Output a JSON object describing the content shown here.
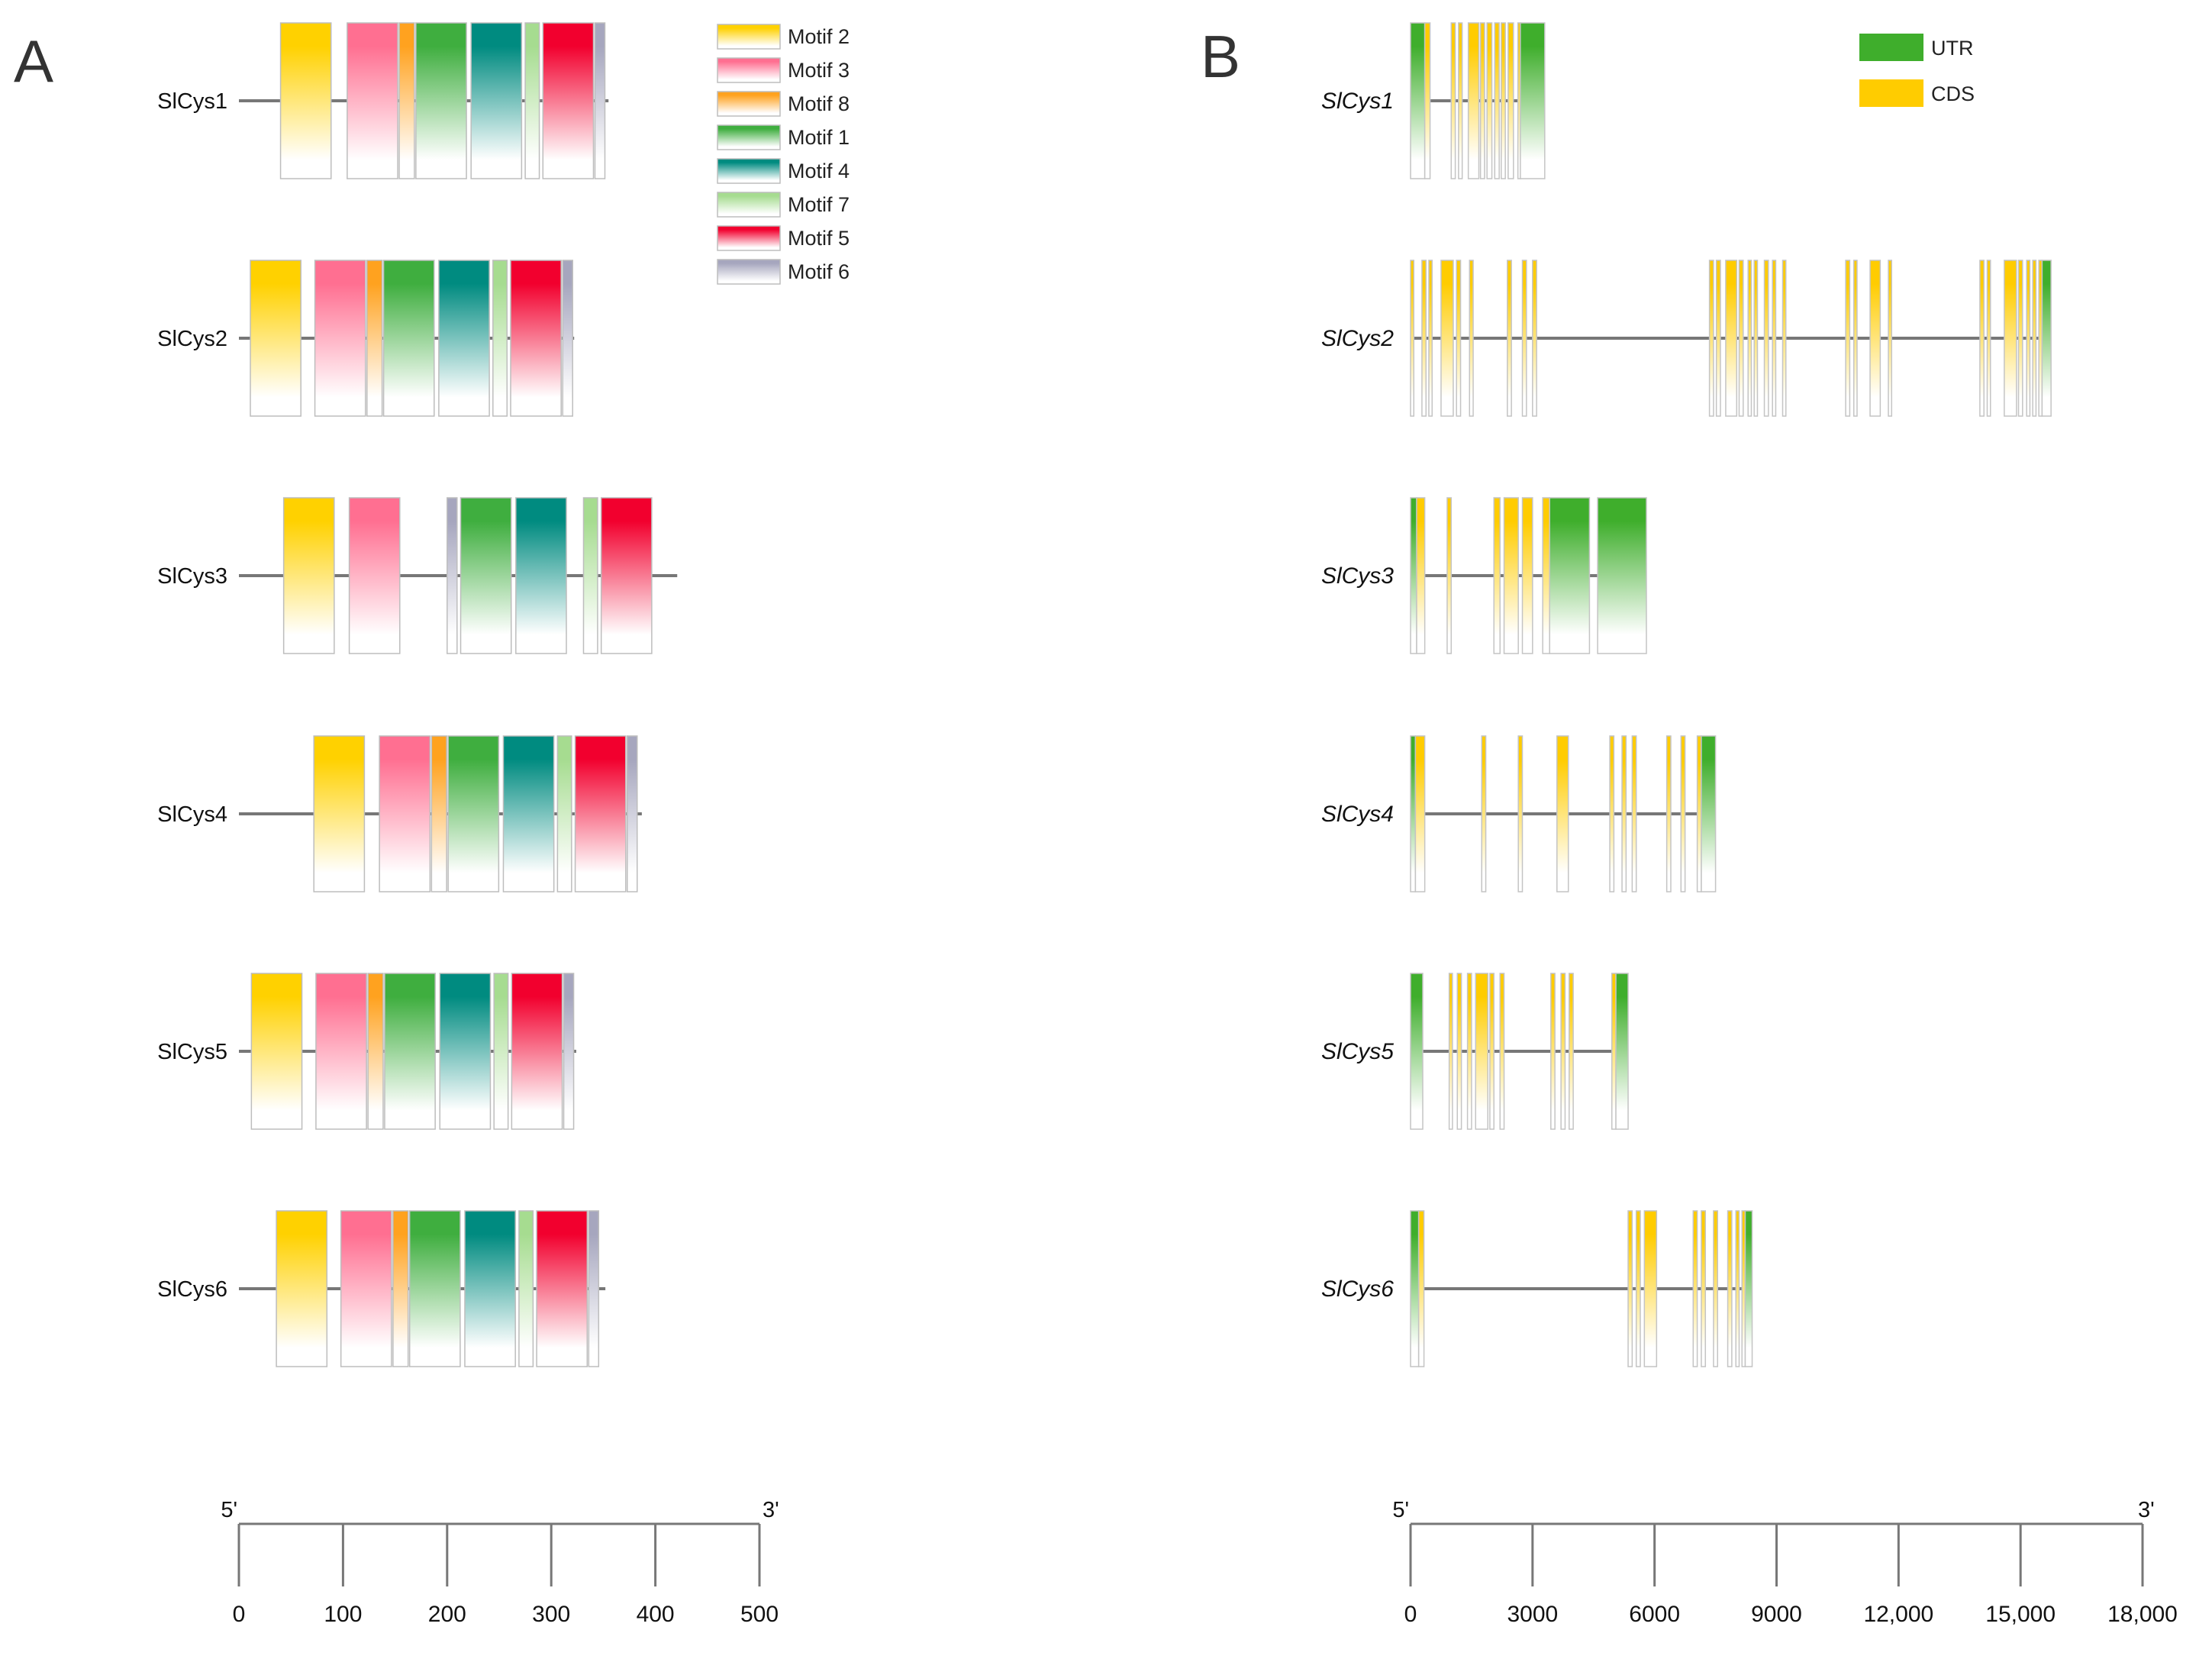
{
  "panels": {
    "a": {
      "label": "A"
    },
    "b": {
      "label": "B"
    }
  },
  "motif_legend": [
    {
      "name": "Motif 2",
      "color": "#FFD100"
    },
    {
      "name": "Motif 3",
      "color": "#FF6F91"
    },
    {
      "name": "Motif 8",
      "color": "#FFA21F"
    },
    {
      "name": "Motif 1",
      "color": "#3FAE3F"
    },
    {
      "name": "Motif 4",
      "color": "#008B80"
    },
    {
      "name": "Motif 7",
      "color": "#A6DC90"
    },
    {
      "name": "Motif 5",
      "color": "#F2002E"
    },
    {
      "name": "Motif 6",
      "color": "#A6A6BE"
    }
  ],
  "gene_legend": [
    {
      "name": "UTR",
      "color": "#3FAE2C"
    },
    {
      "name": "CDS",
      "color": "#FFCC00"
    }
  ],
  "chart_data": [
    {
      "type": "motif-structure",
      "panel": "A",
      "xlabel": "",
      "xlim": [
        0,
        500
      ],
      "ticks": [
        "0",
        "100",
        "200",
        "300",
        "400",
        "500"
      ],
      "tick_values": [
        0,
        100,
        200,
        300,
        400,
        500
      ],
      "end_labels": {
        "left": "5'",
        "right": "3'"
      },
      "proteins": [
        {
          "name": "SlCys1",
          "length": 355,
          "motifs": [
            {
              "motif": "Motif 2",
              "start": 40,
              "end": 90
            },
            {
              "motif": "Motif 3",
              "start": 104,
              "end": 154
            },
            {
              "motif": "Motif 8",
              "start": 154,
              "end": 170
            },
            {
              "motif": "Motif 1",
              "start": 170,
              "end": 220
            },
            {
              "motif": "Motif 4",
              "start": 223,
              "end": 273
            },
            {
              "motif": "Motif 7",
              "start": 275,
              "end": 290
            },
            {
              "motif": "Motif 5",
              "start": 292,
              "end": 342
            },
            {
              "motif": "Motif 6",
              "start": 342,
              "end": 353
            }
          ]
        },
        {
          "name": "SlCys2",
          "length": 322,
          "motifs": [
            {
              "motif": "Motif 2",
              "start": 11,
              "end": 61
            },
            {
              "motif": "Motif 3",
              "start": 73,
              "end": 123
            },
            {
              "motif": "Motif 8",
              "start": 123,
              "end": 139
            },
            {
              "motif": "Motif 1",
              "start": 139,
              "end": 189
            },
            {
              "motif": "Motif 4",
              "start": 192,
              "end": 242
            },
            {
              "motif": "Motif 7",
              "start": 244,
              "end": 259
            },
            {
              "motif": "Motif 5",
              "start": 261,
              "end": 311
            },
            {
              "motif": "Motif 6",
              "start": 311,
              "end": 322
            }
          ]
        },
        {
          "name": "SlCys3",
          "length": 421,
          "motifs": [
            {
              "motif": "Motif 2",
              "start": 43,
              "end": 93
            },
            {
              "motif": "Motif 3",
              "start": 106,
              "end": 156
            },
            {
              "motif": "Motif 6",
              "start": 200,
              "end": 211
            },
            {
              "motif": "Motif 1",
              "start": 213,
              "end": 263
            },
            {
              "motif": "Motif 4",
              "start": 266,
              "end": 316
            },
            {
              "motif": "Motif 7",
              "start": 331,
              "end": 346
            },
            {
              "motif": "Motif 5",
              "start": 348,
              "end": 398
            }
          ]
        },
        {
          "name": "SlCys4",
          "length": 387,
          "motifs": [
            {
              "motif": "Motif 2",
              "start": 72,
              "end": 122
            },
            {
              "motif": "Motif 3",
              "start": 135,
              "end": 185
            },
            {
              "motif": "Motif 8",
              "start": 185,
              "end": 201
            },
            {
              "motif": "Motif 1",
              "start": 201,
              "end": 251
            },
            {
              "motif": "Motif 4",
              "start": 254,
              "end": 304
            },
            {
              "motif": "Motif 7",
              "start": 306,
              "end": 321
            },
            {
              "motif": "Motif 5",
              "start": 323,
              "end": 373
            },
            {
              "motif": "Motif 6",
              "start": 373,
              "end": 384
            }
          ]
        },
        {
          "name": "SlCys5",
          "length": 324,
          "motifs": [
            {
              "motif": "Motif 2",
              "start": 12,
              "end": 62
            },
            {
              "motif": "Motif 3",
              "start": 74,
              "end": 124
            },
            {
              "motif": "Motif 8",
              "start": 124,
              "end": 140
            },
            {
              "motif": "Motif 1",
              "start": 140,
              "end": 190
            },
            {
              "motif": "Motif 4",
              "start": 193,
              "end": 243
            },
            {
              "motif": "Motif 7",
              "start": 245,
              "end": 260
            },
            {
              "motif": "Motif 5",
              "start": 262,
              "end": 312
            },
            {
              "motif": "Motif 6",
              "start": 312,
              "end": 323
            }
          ]
        },
        {
          "name": "SlCys6",
          "length": 352,
          "motifs": [
            {
              "motif": "Motif 2",
              "start": 36,
              "end": 86
            },
            {
              "motif": "Motif 3",
              "start": 98,
              "end": 148
            },
            {
              "motif": "Motif 8",
              "start": 148,
              "end": 164
            },
            {
              "motif": "Motif 1",
              "start": 164,
              "end": 214
            },
            {
              "motif": "Motif 4",
              "start": 217,
              "end": 267
            },
            {
              "motif": "Motif 7",
              "start": 269,
              "end": 284
            },
            {
              "motif": "Motif 5",
              "start": 286,
              "end": 336
            },
            {
              "motif": "Motif 6",
              "start": 336,
              "end": 347
            }
          ]
        }
      ]
    },
    {
      "type": "gene-structure",
      "panel": "B",
      "xlabel": "",
      "xlim": [
        0,
        18000
      ],
      "ticks": [
        "0",
        "3000",
        "6000",
        "9000",
        "12,000",
        "15,000",
        "18,000"
      ],
      "tick_values": [
        0,
        3000,
        6000,
        9000,
        12000,
        15000,
        18000
      ],
      "end_labels": {
        "left": "5'",
        "right": "3'"
      },
      "genes": [
        {
          "name": "SlCys1",
          "length": 3300,
          "features": [
            {
              "type": "UTR",
              "start": 0,
              "end": 350
            },
            {
              "type": "CDS",
              "start": 350,
              "end": 480
            },
            {
              "type": "CDS",
              "start": 1000,
              "end": 1100
            },
            {
              "type": "CDS",
              "start": 1180,
              "end": 1270
            },
            {
              "type": "CDS",
              "start": 1420,
              "end": 1680
            },
            {
              "type": "CDS",
              "start": 1720,
              "end": 1820
            },
            {
              "type": "CDS",
              "start": 1880,
              "end": 2000
            },
            {
              "type": "CDS",
              "start": 2070,
              "end": 2180
            },
            {
              "type": "CDS",
              "start": 2230,
              "end": 2330
            },
            {
              "type": "CDS",
              "start": 2400,
              "end": 2530
            },
            {
              "type": "CDS",
              "start": 2640,
              "end": 2700
            },
            {
              "type": "UTR",
              "start": 2700,
              "end": 3300
            }
          ]
        },
        {
          "name": "SlCys2",
          "length": 15750,
          "features": [
            {
              "type": "CDS",
              "start": 0,
              "end": 80
            },
            {
              "type": "CDS",
              "start": 280,
              "end": 380
            },
            {
              "type": "CDS",
              "start": 450,
              "end": 530
            },
            {
              "type": "CDS",
              "start": 750,
              "end": 1050
            },
            {
              "type": "CDS",
              "start": 1130,
              "end": 1230
            },
            {
              "type": "CDS",
              "start": 1450,
              "end": 1540
            },
            {
              "type": "CDS",
              "start": 2380,
              "end": 2480
            },
            {
              "type": "CDS",
              "start": 2750,
              "end": 2850
            },
            {
              "type": "CDS",
              "start": 3000,
              "end": 3100
            },
            {
              "type": "CDS",
              "start": 7350,
              "end": 7450
            },
            {
              "type": "CDS",
              "start": 7520,
              "end": 7620
            },
            {
              "type": "CDS",
              "start": 7750,
              "end": 8020
            },
            {
              "type": "CDS",
              "start": 8080,
              "end": 8180
            },
            {
              "type": "CDS",
              "start": 8300,
              "end": 8380
            },
            {
              "type": "CDS",
              "start": 8450,
              "end": 8530
            },
            {
              "type": "CDS",
              "start": 8700,
              "end": 8800
            },
            {
              "type": "CDS",
              "start": 8900,
              "end": 8980
            },
            {
              "type": "CDS",
              "start": 9150,
              "end": 9230
            },
            {
              "type": "CDS",
              "start": 10700,
              "end": 10800
            },
            {
              "type": "CDS",
              "start": 10900,
              "end": 10980
            },
            {
              "type": "CDS",
              "start": 11300,
              "end": 11550
            },
            {
              "type": "CDS",
              "start": 11750,
              "end": 11830
            },
            {
              "type": "CDS",
              "start": 14000,
              "end": 14100
            },
            {
              "type": "CDS",
              "start": 14180,
              "end": 14260
            },
            {
              "type": "CDS",
              "start": 14600,
              "end": 14900
            },
            {
              "type": "CDS",
              "start": 14950,
              "end": 15050
            },
            {
              "type": "CDS",
              "start": 15150,
              "end": 15230
            },
            {
              "type": "CDS",
              "start": 15300,
              "end": 15380
            },
            {
              "type": "CDS",
              "start": 15450,
              "end": 15530
            },
            {
              "type": "UTR",
              "start": 15530,
              "end": 15750
            }
          ]
        },
        {
          "name": "SlCys3",
          "length": 5800,
          "features": [
            {
              "type": "UTR",
              "start": 0,
              "end": 150
            },
            {
              "type": "CDS",
              "start": 150,
              "end": 350
            },
            {
              "type": "CDS",
              "start": 900,
              "end": 1000
            },
            {
              "type": "CDS",
              "start": 2050,
              "end": 2200
            },
            {
              "type": "CDS",
              "start": 2300,
              "end": 2650
            },
            {
              "type": "CDS",
              "start": 2750,
              "end": 3000
            },
            {
              "type": "CDS",
              "start": 3250,
              "end": 3420
            },
            {
              "type": "UTR",
              "start": 3420,
              "end": 4400
            },
            {
              "type": "UTR",
              "start": 4600,
              "end": 5800
            }
          ]
        },
        {
          "name": "SlCys4",
          "length": 7500,
          "features": [
            {
              "type": "UTR",
              "start": 0,
              "end": 120
            },
            {
              "type": "CDS",
              "start": 120,
              "end": 350
            },
            {
              "type": "CDS",
              "start": 1750,
              "end": 1850
            },
            {
              "type": "CDS",
              "start": 2650,
              "end": 2750
            },
            {
              "type": "CDS",
              "start": 3600,
              "end": 3880
            },
            {
              "type": "CDS",
              "start": 4900,
              "end": 5000
            },
            {
              "type": "CDS",
              "start": 5200,
              "end": 5300
            },
            {
              "type": "CDS",
              "start": 5450,
              "end": 5550
            },
            {
              "type": "CDS",
              "start": 6300,
              "end": 6400
            },
            {
              "type": "CDS",
              "start": 6650,
              "end": 6750
            },
            {
              "type": "CDS",
              "start": 7050,
              "end": 7150
            },
            {
              "type": "UTR",
              "start": 7150,
              "end": 7500
            }
          ]
        },
        {
          "name": "SlCys5",
          "length": 5350,
          "features": [
            {
              "type": "UTR",
              "start": 0,
              "end": 300
            },
            {
              "type": "CDS",
              "start": 950,
              "end": 1030
            },
            {
              "type": "CDS",
              "start": 1150,
              "end": 1250
            },
            {
              "type": "CDS",
              "start": 1400,
              "end": 1500
            },
            {
              "type": "CDS",
              "start": 1600,
              "end": 1900
            },
            {
              "type": "CDS",
              "start": 1950,
              "end": 2050
            },
            {
              "type": "CDS",
              "start": 2200,
              "end": 2300
            },
            {
              "type": "CDS",
              "start": 3450,
              "end": 3550
            },
            {
              "type": "CDS",
              "start": 3700,
              "end": 3800
            },
            {
              "type": "CDS",
              "start": 3900,
              "end": 4000
            },
            {
              "type": "CDS",
              "start": 4950,
              "end": 5050
            },
            {
              "type": "UTR",
              "start": 5050,
              "end": 5350
            }
          ]
        },
        {
          "name": "SlCys6",
          "length": 8400,
          "features": [
            {
              "type": "UTR",
              "start": 0,
              "end": 200
            },
            {
              "type": "CDS",
              "start": 200,
              "end": 330
            },
            {
              "type": "CDS",
              "start": 5350,
              "end": 5450
            },
            {
              "type": "CDS",
              "start": 5550,
              "end": 5650
            },
            {
              "type": "CDS",
              "start": 5750,
              "end": 6050
            },
            {
              "type": "CDS",
              "start": 6950,
              "end": 7050
            },
            {
              "type": "CDS",
              "start": 7150,
              "end": 7250
            },
            {
              "type": "CDS",
              "start": 7450,
              "end": 7550
            },
            {
              "type": "CDS",
              "start": 7800,
              "end": 7900
            },
            {
              "type": "CDS",
              "start": 8000,
              "end": 8080
            },
            {
              "type": "CDS",
              "start": 8150,
              "end": 8230
            },
            {
              "type": "UTR",
              "start": 8230,
              "end": 8400
            }
          ]
        }
      ]
    }
  ]
}
